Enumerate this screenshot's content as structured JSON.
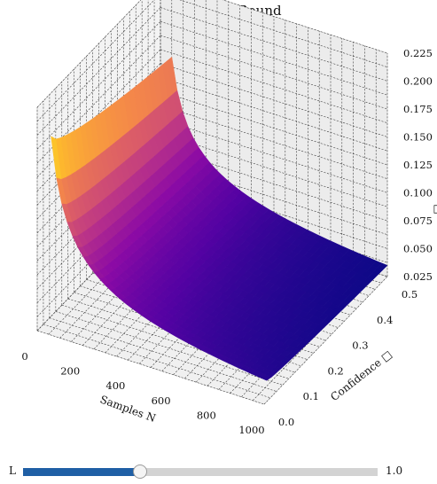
{
  "chart_data": {
    "type": "surface",
    "title": "Generalization Bound",
    "xlabel": "Samples N",
    "ylabel": "Confidence □",
    "zlabel": "□",
    "x_ticks": [
      "0",
      "200",
      "400",
      "600",
      "800",
      "1000"
    ],
    "y_ticks": [
      "0.0",
      "0.1",
      "0.2",
      "0.3",
      "0.4",
      "0.5"
    ],
    "z_ticks": [
      "0.025",
      "0.050",
      "0.075",
      "0.100",
      "0.125",
      "0.150",
      "0.175",
      "0.200",
      "0.225"
    ],
    "xlim": [
      0,
      1000
    ],
    "ylim": [
      0,
      0.5
    ],
    "zlim": [
      0.025,
      0.225
    ],
    "grid": true,
    "colormap": "plasma",
    "surface_x_range": [
      50,
      1000
    ],
    "surface_y_range": [
      0.01,
      0.5
    ],
    "corners": [
      {
        "x": 50,
        "y": 0.01,
        "z": 0.2
      },
      {
        "x": 50,
        "y": 0.5,
        "z": 0.159
      },
      {
        "x": 1000,
        "y": 0.01,
        "z": 0.044
      },
      {
        "x": 1000,
        "y": 0.5,
        "z": 0.035
      }
    ]
  },
  "slider": {
    "label": "L",
    "value_label": "1.0",
    "fraction": 0.33
  }
}
